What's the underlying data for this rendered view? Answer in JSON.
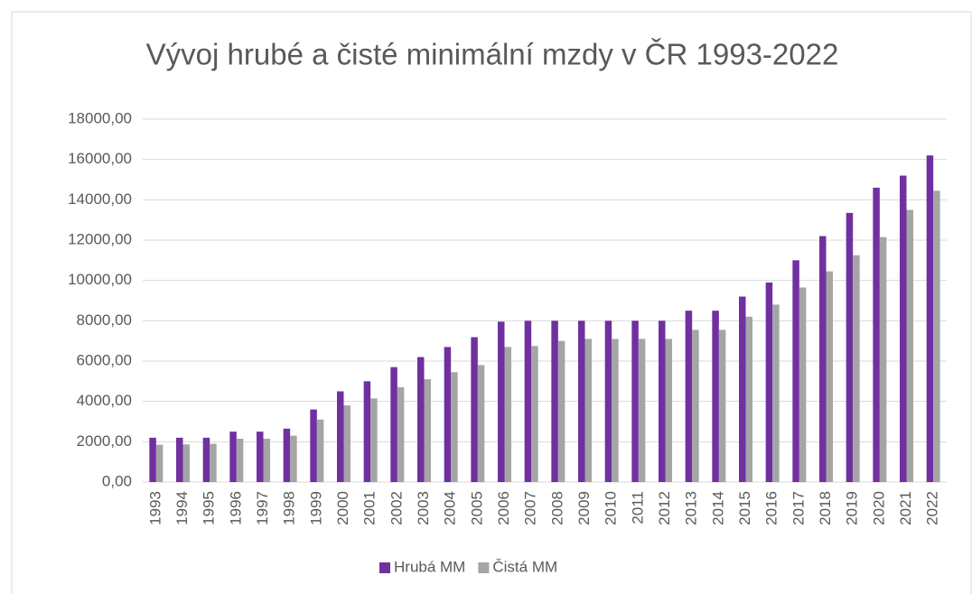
{
  "chart_data": {
    "type": "bar",
    "title": "Vývoj hrubé a čisté minimální mzdy v ČR 1993-2022",
    "categories": [
      "1993",
      "1994",
      "1995",
      "1996",
      "1997",
      "1998",
      "1999",
      "2000",
      "2001",
      "2002",
      "2003",
      "2004",
      "2005",
      "2006",
      "2007",
      "2008",
      "2009",
      "2010",
      "2011",
      "2012",
      "2013",
      "2014",
      "2015",
      "2016",
      "2017",
      "2018",
      "2019",
      "2020",
      "2021",
      "2022"
    ],
    "series": [
      {
        "name": "Hrubá MM",
        "color": "#7030a0",
        "values": [
          2200,
          2200,
          2200,
          2500,
          2500,
          2650,
          3600,
          4500,
          5000,
          5700,
          6200,
          6700,
          7185,
          7955,
          8000,
          8000,
          8000,
          8000,
          8000,
          8000,
          8500,
          8500,
          9200,
          9900,
          11000,
          12200,
          13350,
          14600,
          15200,
          16200
        ]
      },
      {
        "name": "Čistá MM",
        "color": "#a5a5a5",
        "values": [
          1850,
          1870,
          1900,
          2150,
          2150,
          2300,
          3100,
          3800,
          4150,
          4700,
          5100,
          5450,
          5800,
          6700,
          6750,
          7000,
          7100,
          7100,
          7100,
          7100,
          7550,
          7550,
          8200,
          8800,
          9650,
          10450,
          11250,
          12150,
          13500,
          14450
        ]
      }
    ],
    "ylim": [
      0,
      18000
    ],
    "yticks": [
      {
        "value": 0,
        "label": "0,00"
      },
      {
        "value": 2000,
        "label": "2000,00"
      },
      {
        "value": 4000,
        "label": "4000,00"
      },
      {
        "value": 6000,
        "label": "6000,00"
      },
      {
        "value": 8000,
        "label": "8000,00"
      },
      {
        "value": 10000,
        "label": "10000,00"
      },
      {
        "value": 12000,
        "label": "12000,00"
      },
      {
        "value": 14000,
        "label": "14000,00"
      },
      {
        "value": 16000,
        "label": "16000,00"
      },
      {
        "value": 18000,
        "label": "18000,00"
      }
    ],
    "grid": true,
    "legend": "bottom"
  }
}
